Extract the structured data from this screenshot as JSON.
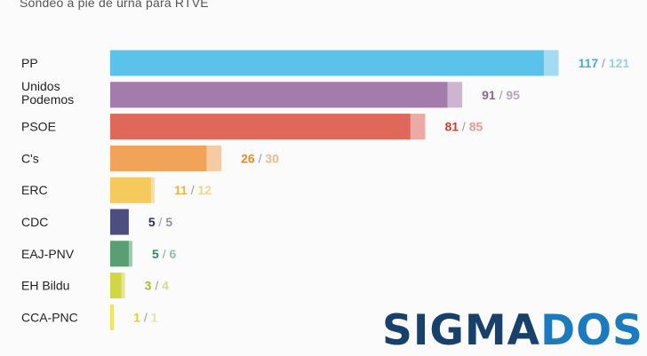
{
  "header": {
    "subtitle": "Sondeo a pie de urna para RTVE"
  },
  "logo": {
    "text_part1": "SIGMA",
    "text_part2": "DOS",
    "color_part1": "#17406b",
    "color_part2": "#1c7bbf"
  },
  "chart_data": {
    "type": "bar",
    "orientation": "horizontal",
    "title": "",
    "xlabel": "",
    "ylabel": "",
    "xlim": [
      0,
      121
    ],
    "grid": false,
    "legend": "none",
    "categories": [
      "PP",
      "Unidos Podemos",
      "PSOE",
      "C's",
      "ERC",
      "CDC",
      "EAJ-PNV",
      "EH Bildu",
      "CCA-PNC"
    ],
    "series": [
      {
        "name": "",
        "values": [
          117,
          91,
          81,
          26,
          11,
          5,
          5,
          3,
          1
        ]
      },
      {
        "name": "",
        "values": [
          121,
          95,
          85,
          30,
          12,
          5,
          6,
          4,
          1
        ]
      }
    ],
    "colors": [
      "#5bc2ea",
      "#a47cac",
      "#e0685a",
      "#f2a35a",
      "#f6c95c",
      "#4b4e7e",
      "#58a073",
      "#d2d645",
      "#f3e25a"
    ],
    "label_colors": [
      "#41aedc",
      "#92629a",
      "#d23e2e",
      "#e48b2c",
      "#edb53a",
      "#2b2e5e",
      "#2b8a55",
      "#b4b61c",
      "#e3cf2c"
    ],
    "label_colors_light": [
      "#8fd3ee",
      "#bda2c2",
      "#e59a90",
      "#f2b98a",
      "#f3d589",
      "#8f92ad",
      "#8fc0a0",
      "#d8d98c",
      "#eee19a"
    ],
    "value_separator": "/",
    "display_labels": [
      "PP",
      "Unidos\nPodemos",
      "PSOE",
      "C's",
      "ERC",
      "CDC",
      "EAJ-PNV",
      "EH Bildu",
      "CCA-PNC"
    ]
  }
}
